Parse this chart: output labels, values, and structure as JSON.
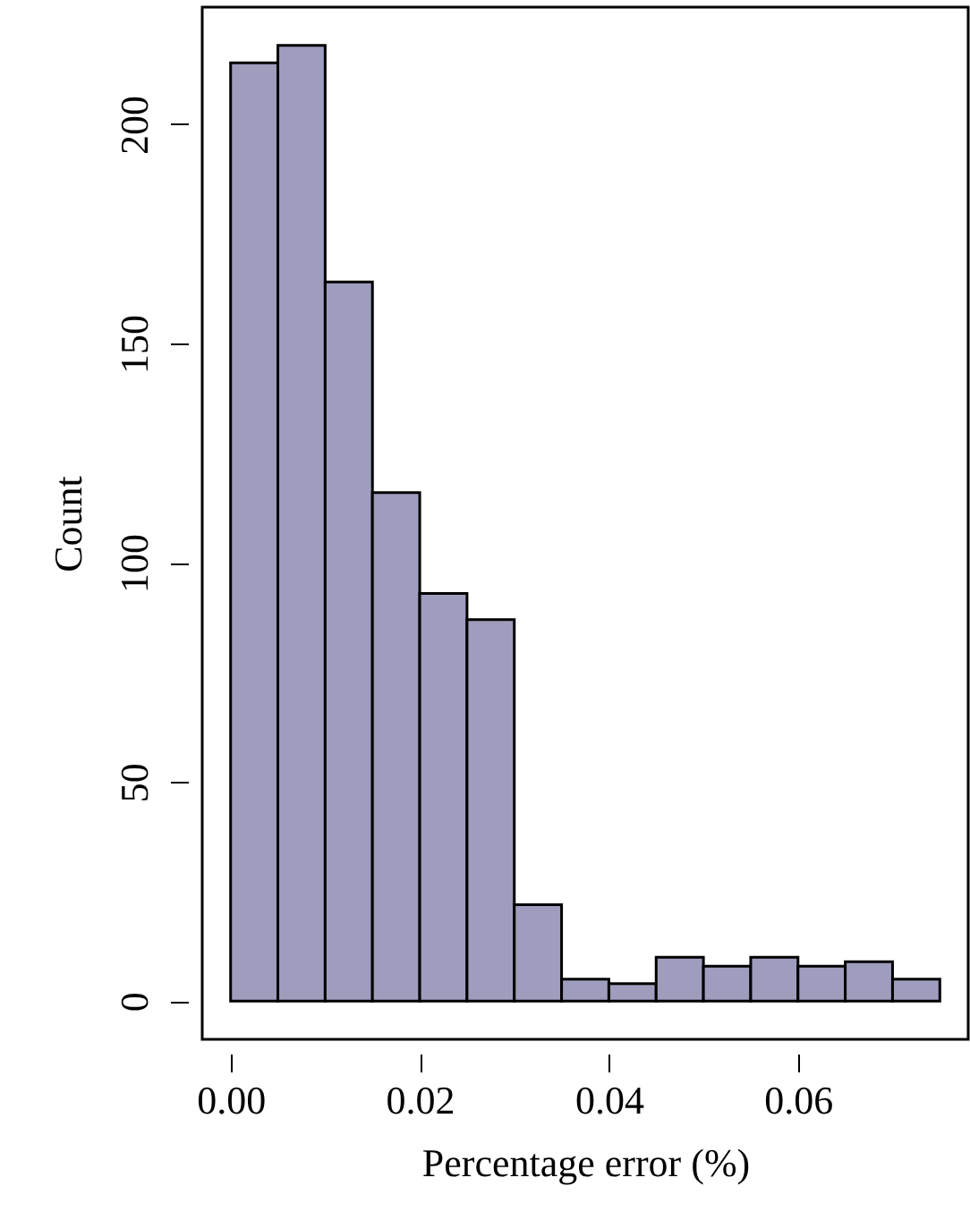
{
  "chart_data": {
    "type": "histogram",
    "xlabel": "Percentage error (%)",
    "ylabel": "Count",
    "bins": [
      0,
      0.005,
      0.01,
      0.015,
      0.02,
      0.025,
      0.03,
      0.035,
      0.04,
      0.045,
      0.05,
      0.055,
      0.06,
      0.065,
      0.07,
      0.075
    ],
    "values": [
      214,
      218,
      164,
      116,
      93,
      87,
      22,
      5,
      4,
      10,
      8,
      10,
      8,
      9,
      5
    ],
    "color": "#9f9dbd",
    "xlim": [
      -0.003,
      0.078
    ],
    "ylim": [
      -8.7,
      226.7
    ],
    "xticks": [
      {
        "value": 0,
        "label": "0.00"
      },
      {
        "value": 0.02,
        "label": "0.02"
      },
      {
        "value": 0.04,
        "label": "0.04"
      },
      {
        "value": 0.06,
        "label": "0.06"
      }
    ],
    "yticks": [
      0,
      50,
      100,
      150,
      200
    ],
    "grid": false
  }
}
